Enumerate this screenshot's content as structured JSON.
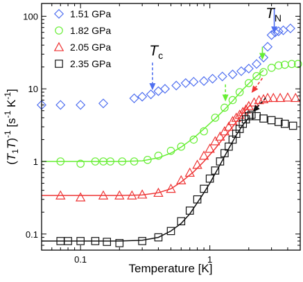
{
  "chart_data": {
    "type": "scatter",
    "title": "",
    "xlabel": "Temperature [K]",
    "ylabel": "(T1T)-1 [s-1 K-1]",
    "ylabel_parts": {
      "open": "(",
      "T": "T",
      "sub": "1",
      "T2": "T",
      "close": ")",
      "exp": "-1",
      "unit_open": " [s",
      "unit_exp1": "-1",
      "unit_mid": " K",
      "unit_exp2": "-1",
      "unit_close": "]"
    },
    "xscale": "log",
    "yscale": "log",
    "xlim": [
      0.05,
      5
    ],
    "ylim": [
      0.06,
      150
    ],
    "x_ticks": [
      {
        "value": 0.1,
        "label": "0.1"
      },
      {
        "value": 1,
        "label": "1"
      }
    ],
    "y_ticks": [
      {
        "value": 0.1,
        "label": "0.1"
      },
      {
        "value": 1,
        "label": "1"
      },
      {
        "value": 10,
        "label": "10"
      },
      {
        "value": 100,
        "label": "100"
      }
    ],
    "grid": false,
    "legend_position": "top-left",
    "series": [
      {
        "name": "1.51 GPa",
        "marker": "diamond",
        "color": "#4f6ff0",
        "x": [
          0.05,
          0.07,
          0.1,
          0.15,
          0.26,
          0.3,
          0.35,
          0.4,
          0.45,
          0.55,
          0.65,
          0.75,
          0.9,
          1.05,
          1.25,
          1.5,
          1.75,
          2.0,
          2.3,
          2.6,
          2.8,
          3.0,
          3.2,
          3.4,
          3.7,
          4.2
        ],
        "y": [
          6.0,
          6.0,
          6.0,
          6.3,
          7.4,
          7.8,
          8.4,
          9.3,
          10.0,
          11.1,
          12.0,
          12.5,
          12.8,
          13.8,
          14.8,
          15.8,
          17.5,
          19.0,
          22.0,
          27.0,
          38.0,
          55.0,
          60.0,
          62.0,
          64.0,
          68.0
        ]
      },
      {
        "name": "1.82 GPa",
        "marker": "circle",
        "color": "#66ee33",
        "x": [
          0.07,
          0.1,
          0.13,
          0.15,
          0.17,
          0.21,
          0.26,
          0.33,
          0.4,
          0.5,
          0.6,
          0.75,
          0.9,
          1.1,
          1.3,
          1.5,
          1.7,
          2.0,
          2.3,
          2.6,
          3.0,
          3.4,
          3.8,
          4.3,
          4.8
        ],
        "y": [
          1.0,
          0.93,
          1.0,
          1.0,
          1.0,
          1.0,
          1.0,
          1.05,
          1.2,
          1.4,
          1.6,
          2.0,
          2.6,
          4.0,
          5.5,
          7.0,
          9.0,
          12.0,
          15.0,
          17.0,
          19.5,
          21.0,
          21.5,
          22.0,
          22.0
        ]
      },
      {
        "name": "2.05 GPa",
        "marker": "triangle",
        "color": "#ee3333",
        "x": [
          0.07,
          0.1,
          0.15,
          0.2,
          0.25,
          0.3,
          0.4,
          0.5,
          0.6,
          0.7,
          0.8,
          0.9,
          1.0,
          1.1,
          1.2,
          1.3,
          1.4,
          1.5,
          1.6,
          1.7,
          1.8,
          1.9,
          2.0,
          2.2,
          2.4,
          2.6,
          2.8,
          3.1,
          3.5,
          4.0,
          4.6
        ],
        "y": [
          0.34,
          0.32,
          0.34,
          0.34,
          0.34,
          0.35,
          0.37,
          0.42,
          0.55,
          0.7,
          0.9,
          1.2,
          1.5,
          1.9,
          2.2,
          2.6,
          3.0,
          3.6,
          4.0,
          4.4,
          4.8,
          5.2,
          5.8,
          6.5,
          7.0,
          7.2,
          7.5,
          7.5,
          7.5,
          7.6,
          7.5
        ]
      },
      {
        "name": "2.35 GPa",
        "marker": "square",
        "color": "#111111",
        "x": [
          0.07,
          0.08,
          0.1,
          0.13,
          0.16,
          0.2,
          0.3,
          0.4,
          0.5,
          0.6,
          0.7,
          0.8,
          0.9,
          1.0,
          1.1,
          1.2,
          1.3,
          1.4,
          1.5,
          1.6,
          1.7,
          1.8,
          1.9,
          2.0,
          2.1,
          2.3,
          2.6,
          3.0,
          3.4,
          3.8,
          4.4
        ],
        "y": [
          0.08,
          0.08,
          0.08,
          0.08,
          0.078,
          0.075,
          0.08,
          0.09,
          0.11,
          0.15,
          0.21,
          0.3,
          0.42,
          0.58,
          0.75,
          1.0,
          1.3,
          1.6,
          2.0,
          2.4,
          2.8,
          3.3,
          3.8,
          4.2,
          4.4,
          4.2,
          3.9,
          3.7,
          3.5,
          3.3,
          3.1
        ]
      }
    ],
    "fit_curves": [
      {
        "color": "#66ee33",
        "x": [
          0.05,
          0.1,
          0.2,
          0.3,
          0.4,
          0.5,
          0.6,
          0.75,
          0.9,
          1.1,
          1.3,
          1.5,
          1.8,
          2.2,
          2.6
        ],
        "y": [
          1.0,
          1.0,
          1.0,
          1.02,
          1.12,
          1.3,
          1.58,
          2.1,
          2.8,
          3.9,
          5.2,
          6.8,
          9.8,
          14.0,
          18.0
        ]
      },
      {
        "color": "#ee3333",
        "x": [
          0.05,
          0.1,
          0.2,
          0.3,
          0.4,
          0.5,
          0.6,
          0.75,
          0.9,
          1.1,
          1.3,
          1.5,
          1.8,
          2.05
        ],
        "y": [
          0.34,
          0.34,
          0.34,
          0.345,
          0.37,
          0.42,
          0.52,
          0.72,
          1.0,
          1.5,
          2.2,
          3.0,
          4.6,
          6.0
        ]
      },
      {
        "color": "#111111",
        "x": [
          0.05,
          0.1,
          0.2,
          0.3,
          0.4,
          0.5,
          0.6,
          0.7,
          0.8,
          0.9,
          1.0,
          1.2,
          1.4,
          1.6,
          1.8,
          2.0
        ],
        "y": [
          0.08,
          0.08,
          0.08,
          0.082,
          0.09,
          0.11,
          0.14,
          0.19,
          0.27,
          0.37,
          0.5,
          0.9,
          1.5,
          2.3,
          3.2,
          4.0
        ]
      }
    ],
    "annotations": [
      {
        "id": "tn",
        "text": "T",
        "sub": "N",
        "x": 2.7,
        "y": 95
      },
      {
        "id": "tc",
        "text": "T",
        "sub": "c",
        "x": 0.34,
        "y": 29
      }
    ],
    "arrows": [
      {
        "color": "#4f6ff0",
        "dashed": false,
        "from": [
          3.15,
          130
        ],
        "to": [
          3.15,
          58
        ]
      },
      {
        "color": "#4f6ff0",
        "dashed": true,
        "from": [
          0.36,
          23
        ],
        "to": [
          0.36,
          9.6
        ]
      },
      {
        "color": "#66ee33",
        "dashed": false,
        "from": [
          2.55,
          38
        ],
        "to": [
          2.55,
          25
        ]
      },
      {
        "color": "#66ee33",
        "dashed": true,
        "from": [
          1.32,
          11.5
        ],
        "to": [
          1.32,
          6.7
        ]
      },
      {
        "color": "#ee3333",
        "dashed": true,
        "from": [
          2.55,
          14
        ],
        "to": [
          2.1,
          8.8
        ]
      },
      {
        "color": "#111111",
        "dashed": true,
        "from": [
          2.7,
          7.5
        ],
        "to": [
          2.15,
          4.8
        ]
      }
    ]
  }
}
